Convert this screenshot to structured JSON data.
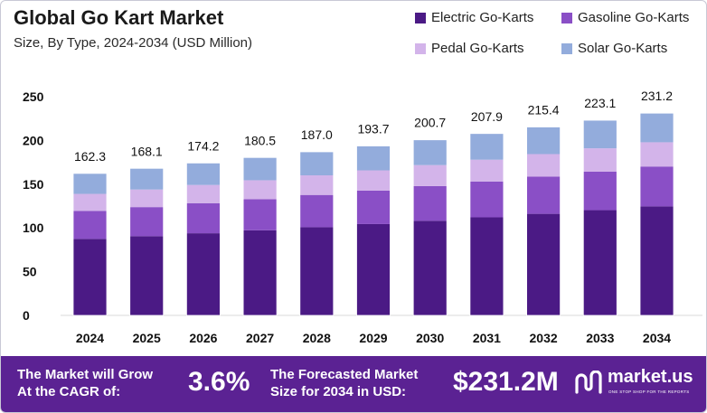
{
  "header": {
    "title": "Global Go Kart Market",
    "subtitle": "Size, By Type, 2024-2034 (USD Million)"
  },
  "chart_data": {
    "type": "bar",
    "stacked": true,
    "title": "Global Go Kart Market",
    "subtitle": "Size, By Type, 2024-2034 (USD Million)",
    "xlabel": "",
    "ylabel": "",
    "ylim": [
      0,
      250
    ],
    "yticks": [
      "0",
      "50",
      "100",
      "150",
      "200",
      "250"
    ],
    "categories": [
      "2024",
      "2025",
      "2026",
      "2027",
      "2028",
      "2029",
      "2030",
      "2031",
      "2032",
      "2033",
      "2034"
    ],
    "totals": [
      162.3,
      168.1,
      174.2,
      180.5,
      187.0,
      193.7,
      200.7,
      207.9,
      215.4,
      223.1,
      231.2
    ],
    "total_labels": [
      "162.3",
      "168.1",
      "174.2",
      "180.5",
      "187.0",
      "193.7",
      "200.7",
      "207.9",
      "215.4",
      "223.1",
      "231.2"
    ],
    "series": [
      {
        "name": "Electric Go-Karts",
        "color": "#4b1a85",
        "values": [
          87.5,
          90.6,
          93.9,
          97.3,
          100.8,
          104.4,
          108.2,
          112.1,
          116.1,
          120.3,
          124.6
        ]
      },
      {
        "name": "Gasoline Go-Karts",
        "color": "#8a4fc6",
        "values": [
          32.0,
          33.2,
          34.4,
          35.6,
          36.9,
          38.2,
          39.6,
          41.0,
          42.5,
          44.0,
          45.6
        ]
      },
      {
        "name": "Pedal Go-Karts",
        "color": "#d3b4ea",
        "values": [
          19.4,
          20.1,
          20.8,
          21.6,
          22.4,
          23.2,
          24.0,
          24.9,
          25.8,
          26.7,
          27.7
        ]
      },
      {
        "name": "Solar Go-Karts",
        "color": "#93acdc",
        "values": [
          23.4,
          24.2,
          25.1,
          26.0,
          26.9,
          27.9,
          28.9,
          29.9,
          31.0,
          32.1,
          33.3
        ]
      }
    ],
    "grid": false,
    "legend_position": "top-right"
  },
  "footer": {
    "cagr_label_line1": "The Market will Grow",
    "cagr_label_line2": "At the CAGR of:",
    "cagr_value": "3.6%",
    "forecast_label_line1": "The Forecasted Market",
    "forecast_label_line2": "Size for 2034 in USD:",
    "forecast_value": "$231.2M",
    "brand_name": "market.us",
    "brand_tagline": "ONE STOP SHOP FOR THE REPORTS",
    "background_color": "#5b2293"
  }
}
